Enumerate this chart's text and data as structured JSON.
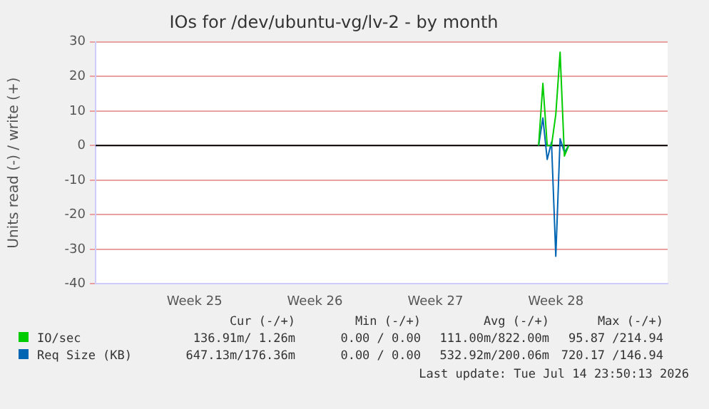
{
  "chart_data": {
    "type": "line",
    "title": "IOs for /dev/ubuntu-vg/lv-2 - by month",
    "ylabel": "Units read (-) / write (+)",
    "categories": [
      null,
      null,
      null,
      null,
      null,
      null,
      null,
      null,
      null,
      null,
      null,
      null,
      null,
      null,
      null,
      null,
      null,
      null,
      null,
      null,
      null,
      null,
      null,
      "Week 25",
      null,
      null,
      null,
      null,
      null,
      null,
      null,
      null,
      null,
      null,
      null,
      null,
      null,
      null,
      null,
      null,
      null,
      null,
      null,
      null,
      null,
      null,
      null,
      null,
      null,
      null,
      null,
      "Week 26",
      null,
      null,
      null,
      null,
      null,
      null,
      null,
      null,
      null,
      null,
      null,
      null,
      null,
      null,
      null,
      null,
      null,
      null,
      null,
      null,
      null,
      null,
      null,
      null,
      null,
      null,
      null,
      "Week 27",
      null,
      null,
      null,
      null,
      null,
      null,
      null,
      null,
      null,
      null,
      null,
      null,
      null,
      null,
      null,
      null,
      null,
      null,
      null,
      null,
      null,
      null,
      null,
      null,
      null,
      null,
      null,
      "Week 28",
      null,
      null,
      null,
      null,
      null,
      null,
      null,
      null,
      null,
      null,
      null,
      null,
      null,
      null,
      null,
      null,
      null,
      null,
      null,
      null,
      null,
      null,
      null,
      null,
      null,
      null
    ],
    "series": [
      {
        "name": "IO/sec",
        "color": "#00cc00",
        "values": [
          null,
          null,
          null,
          null,
          null,
          null,
          null,
          null,
          null,
          null,
          null,
          null,
          null,
          null,
          null,
          null,
          null,
          null,
          null,
          null,
          null,
          null,
          null,
          null,
          null,
          null,
          null,
          null,
          null,
          null,
          null,
          null,
          null,
          null,
          null,
          null,
          null,
          null,
          null,
          null,
          null,
          null,
          null,
          null,
          null,
          null,
          null,
          null,
          null,
          null,
          null,
          null,
          null,
          null,
          null,
          null,
          null,
          null,
          null,
          null,
          null,
          null,
          null,
          null,
          null,
          null,
          null,
          null,
          null,
          null,
          null,
          null,
          null,
          null,
          null,
          null,
          null,
          null,
          null,
          null,
          null,
          null,
          null,
          null,
          null,
          null,
          null,
          null,
          null,
          null,
          null,
          null,
          null,
          null,
          null,
          null,
          null,
          null,
          null,
          null,
          null,
          null,
          null,
          0,
          18,
          0,
          0,
          9,
          27,
          -3,
          0,
          null,
          null,
          null,
          null,
          null,
          null,
          null,
          null,
          null,
          null,
          null,
          null,
          null,
          null,
          null,
          null,
          null,
          null,
          null,
          null,
          null,
          null,
          null
        ]
      },
      {
        "name": "Req Size (KB)",
        "color": "#0066b3",
        "values": [
          null,
          null,
          null,
          null,
          null,
          null,
          null,
          null,
          null,
          null,
          null,
          null,
          null,
          null,
          null,
          null,
          null,
          null,
          null,
          null,
          null,
          null,
          null,
          null,
          null,
          null,
          null,
          null,
          null,
          null,
          null,
          null,
          null,
          null,
          null,
          null,
          null,
          null,
          null,
          null,
          null,
          null,
          null,
          null,
          null,
          null,
          null,
          null,
          null,
          null,
          null,
          null,
          null,
          null,
          null,
          null,
          null,
          null,
          null,
          null,
          null,
          null,
          null,
          null,
          null,
          null,
          null,
          null,
          null,
          null,
          null,
          null,
          null,
          null,
          null,
          null,
          null,
          null,
          null,
          null,
          null,
          null,
          null,
          null,
          null,
          null,
          null,
          null,
          null,
          null,
          null,
          null,
          null,
          null,
          null,
          null,
          null,
          null,
          null,
          null,
          null,
          null,
          null,
          0,
          8,
          -4,
          1,
          -32,
          2,
          -2,
          0,
          null,
          null,
          null,
          null,
          null,
          null,
          null,
          null,
          null,
          null,
          null,
          null,
          null,
          null,
          null,
          null,
          null,
          null,
          null,
          null,
          null,
          null,
          null
        ]
      }
    ],
    "ylim": [
      -40,
      30
    ],
    "yticks": [
      -40,
      -30,
      -20,
      -10,
      0,
      10,
      20,
      30
    ],
    "ref_lines": [
      {
        "axis": "y",
        "value": 0,
        "color": "#000000"
      }
    ],
    "grid": "y",
    "legend": "bottom",
    "marker": "none",
    "line_style": "solid",
    "annotations": [
      "Cur (-/+)",
      "Min (-/+)",
      "Avg (-/+)",
      "Max (-/+)",
      "136.91m/ 1.26m",
      "0.00 / 0.00",
      "111.00m/822.00m",
      "95.87 /214.94",
      "647.13m/176.36m",
      "0.00 / 0.00",
      "532.92m/200.06m",
      "720.17 /146.94",
      "Last update: Tue Jul 14 23:50:13 2026"
    ]
  }
}
